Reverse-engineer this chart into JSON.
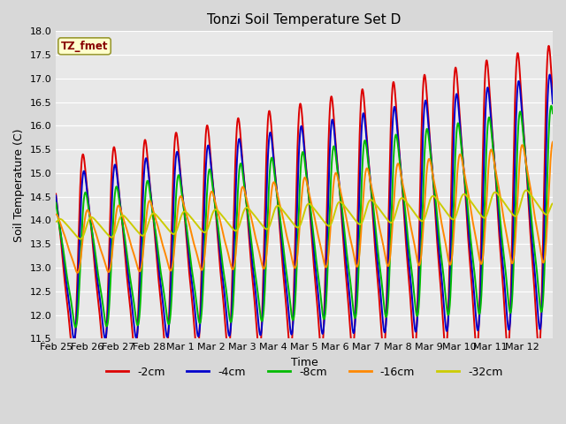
{
  "title": "Tonzi Soil Temperature Set D",
  "xlabel": "Time",
  "ylabel": "Soil Temperature (C)",
  "ylim": [
    11.5,
    18.0
  ],
  "yticks": [
    11.5,
    12.0,
    12.5,
    13.0,
    13.5,
    14.0,
    14.5,
    15.0,
    15.5,
    16.0,
    16.5,
    17.0,
    17.5,
    18.0
  ],
  "bg_color": "#e8e8e8",
  "grid_color": "#ffffff",
  "legend_label": "TZ_fmet",
  "legend_box_facecolor": "#ffffcc",
  "legend_box_edgecolor": "#999933",
  "legend_text_color": "#880000",
  "series": [
    {
      "label": "-2cm",
      "color": "#dd0000",
      "lw": 1.4
    },
    {
      "label": "-4cm",
      "color": "#0000cc",
      "lw": 1.4
    },
    {
      "label": "-8cm",
      "color": "#00bb00",
      "lw": 1.4
    },
    {
      "label": "-16cm",
      "color": "#ff8800",
      "lw": 1.4
    },
    {
      "label": "-32cm",
      "color": "#cccc00",
      "lw": 1.4
    }
  ],
  "xtick_labels": [
    "Feb 25",
    "Feb 26",
    "Feb 27",
    "Feb 28",
    "Mar 1",
    "Mar 2",
    "Mar 3",
    "Mar 4",
    "Mar 5",
    "Mar 6",
    "Mar 7",
    "Mar 8",
    "Mar 9",
    "Mar 10",
    "Mar 11",
    "Mar 12"
  ],
  "figsize": [
    6.4,
    4.8
  ],
  "dpi": 100
}
